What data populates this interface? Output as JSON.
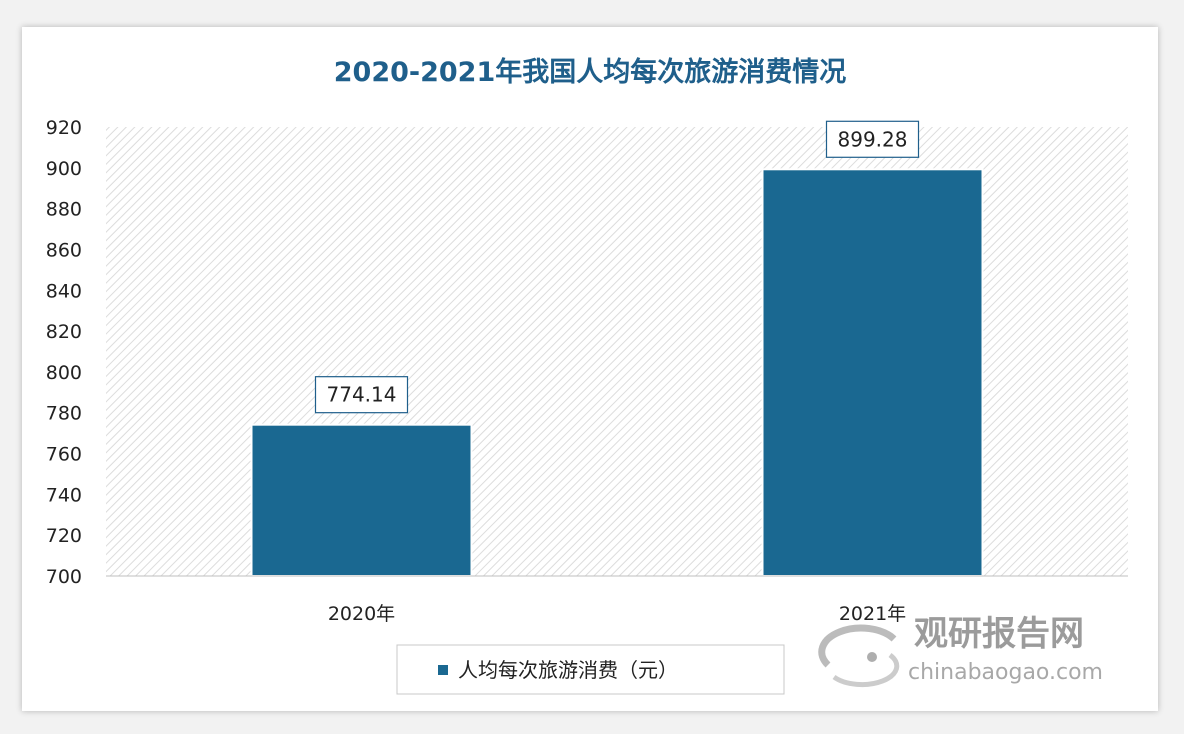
{
  "chart_data": {
    "type": "bar",
    "title": "2020-2021年我国人均每次旅游消费情况",
    "categories": [
      "2020年",
      "2021年"
    ],
    "series": [
      {
        "name": "人均每次旅游消费（元）",
        "values": [
          774.14,
          899.28
        ],
        "labels": [
          "774.14",
          "899.28"
        ]
      }
    ],
    "xlabel": "",
    "ylabel": "",
    "ylim": [
      700,
      920
    ],
    "yticks": [
      700,
      720,
      740,
      760,
      780,
      800,
      820,
      840,
      860,
      880,
      900,
      920
    ],
    "grid": false,
    "plot_background": "hatched",
    "legend": "bottom-center",
    "bar_color": "#1a6891"
  },
  "watermark": {
    "brand": "观研报告网",
    "domain": "chinabaogao.com"
  }
}
